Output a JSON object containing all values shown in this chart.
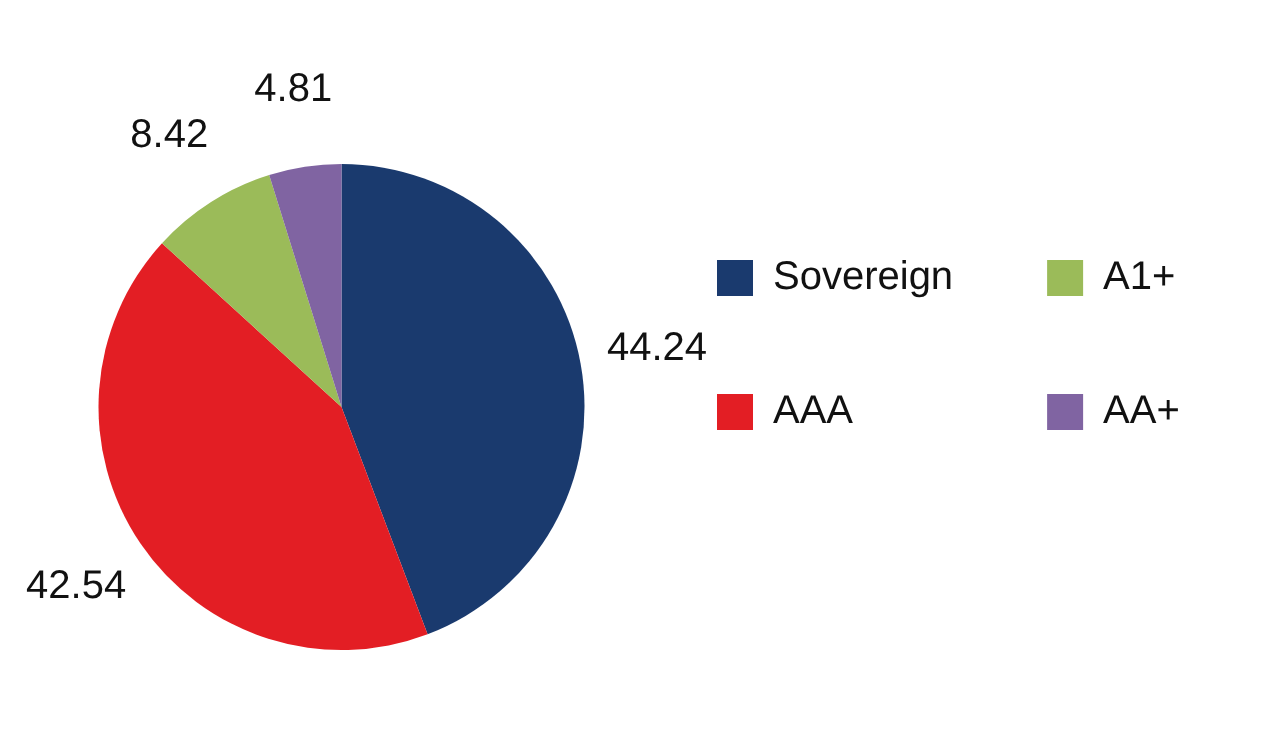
{
  "chart_data": {
    "type": "pie",
    "categories": [
      "Sovereign",
      "AAA",
      "A1+",
      "AA+"
    ],
    "values": [
      44.24,
      42.54,
      8.42,
      4.81
    ],
    "colors": [
      "#1a3a6e",
      "#e31e24",
      "#9bbb59",
      "#8064a2"
    ],
    "data_labels": true,
    "legend": "right"
  }
}
